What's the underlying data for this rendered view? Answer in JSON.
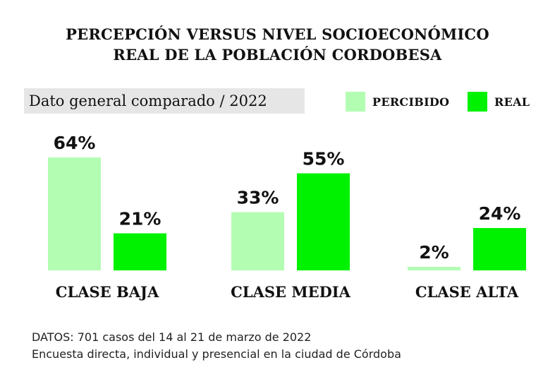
{
  "chart_data": {
    "type": "bar",
    "title_lines": [
      "PERCEPCIÓN VERSUS NIVEL SOCIOECONÓMICO",
      "REAL DE LA POBLACIÓN CORDOBESA"
    ],
    "subtitle": "Dato general comparado / 2022",
    "categories": [
      "CLASE BAJA",
      "CLASE MEDIA",
      "CLASE ALTA"
    ],
    "series": [
      {
        "name": "PERCIBIDO",
        "values": [
          64,
          33,
          2
        ],
        "labels": [
          "64%",
          "33%",
          "2%"
        ],
        "color": "#b3fdb3"
      },
      {
        "name": "REAL",
        "values": [
          21,
          55,
          24
        ],
        "labels": [
          "21%",
          "55%",
          "24%"
        ],
        "color": "#00f200"
      }
    ],
    "ylim": [
      0,
      64
    ],
    "legend_position": "top-right",
    "grid": false,
    "source_lines": [
      "DATOS: 701 casos del 14 al 21 de marzo de 2022",
      "Encuesta directa, individual y presencial en la ciudad de Córdoba"
    ]
  }
}
